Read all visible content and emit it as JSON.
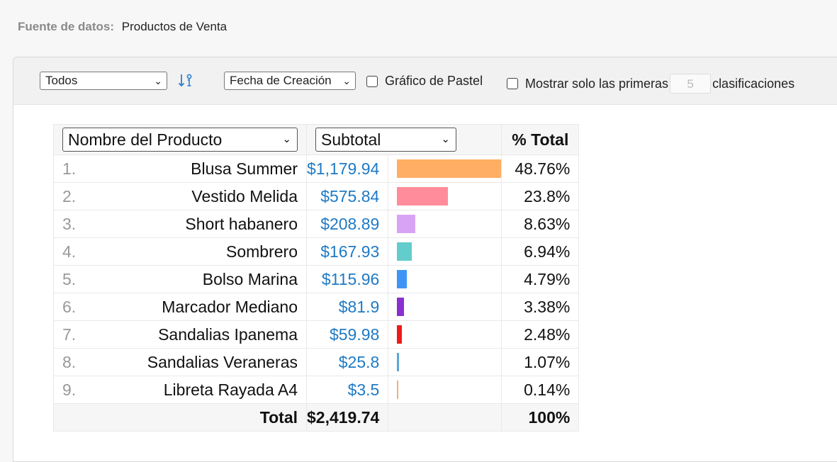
{
  "source": {
    "label": "Fuente de datos:",
    "value": "Productos de Venta"
  },
  "toolbar": {
    "filter_select": "Todos",
    "sort_select": "Fecha de Creación",
    "pie_label": "Gráfico de Pastel",
    "top_prefix": "Mostrar solo las primeras",
    "top_value": "5",
    "top_suffix": "clasificaciones"
  },
  "table": {
    "name_header": "Nombre del Producto",
    "subtotal_header": "Subtotal",
    "pct_header": "% Total",
    "rows": [
      {
        "rank": "1.",
        "name": "Blusa Summer",
        "subtotal": "$1,179.94",
        "pct": "48.76%",
        "share": 48.76,
        "color": "#ffae63"
      },
      {
        "rank": "2.",
        "name": "Vestido Melida",
        "subtotal": "$575.84",
        "pct": "23.8%",
        "share": 23.8,
        "color": "#ff8c9a"
      },
      {
        "rank": "3.",
        "name": "Short habanero",
        "subtotal": "$208.89",
        "pct": "8.63%",
        "share": 8.63,
        "color": "#d9a3f5"
      },
      {
        "rank": "4.",
        "name": "Sombrero",
        "subtotal": "$167.93",
        "pct": "6.94%",
        "share": 6.94,
        "color": "#63cccc"
      },
      {
        "rank": "5.",
        "name": "Bolso Marina",
        "subtotal": "$115.96",
        "pct": "4.79%",
        "share": 4.79,
        "color": "#3e95f5"
      },
      {
        "rank": "6.",
        "name": "Marcador Mediano",
        "subtotal": "$81.9",
        "pct": "3.38%",
        "share": 3.38,
        "color": "#8a2fd0"
      },
      {
        "rank": "7.",
        "name": "Sandalias Ipanema",
        "subtotal": "$59.98",
        "pct": "2.48%",
        "share": 2.48,
        "color": "#f01a1a"
      },
      {
        "rank": "8.",
        "name": "Sandalias Veraneras",
        "subtotal": "$25.8",
        "pct": "1.07%",
        "share": 1.07,
        "color": "#5aa7d8"
      },
      {
        "rank": "9.",
        "name": "Libreta Rayada A4",
        "subtotal": "$3.5",
        "pct": "0.14%",
        "share": 0.14,
        "color": "#f5b07a"
      }
    ],
    "total_label": "Total",
    "total_subtotal": "$2,419.74",
    "total_pct": "100%"
  }
}
